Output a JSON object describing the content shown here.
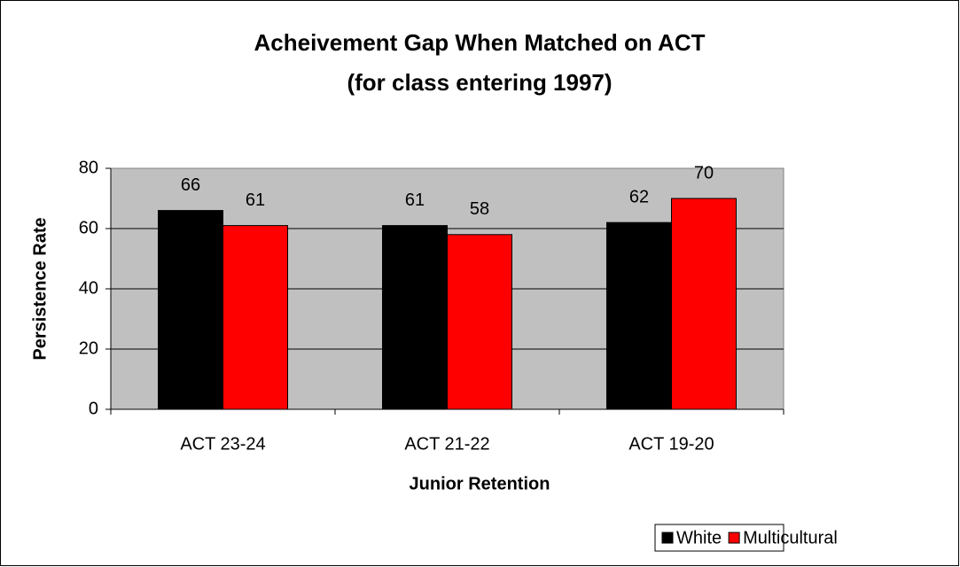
{
  "chart_data": {
    "type": "bar",
    "title": "Acheivement Gap When Matched on ACT",
    "subtitle": "(for class entering 1997)",
    "x_label": "Junior Retention",
    "y_label": "Persistence Rate",
    "categories": [
      "ACT 23-24",
      "ACT 21-22",
      "ACT 19-20"
    ],
    "series": [
      {
        "name": "White",
        "color": "#000000",
        "values": [
          66,
          61,
          62
        ]
      },
      {
        "name": "Multicultural",
        "color": "#ff0000",
        "values": [
          61,
          58,
          70
        ]
      }
    ],
    "ylim": [
      0,
      80
    ],
    "yticks": [
      0,
      20,
      40,
      60,
      80
    ],
    "grid": true,
    "plot_background": "#c0c0c0",
    "legend": "bottom-right"
  }
}
